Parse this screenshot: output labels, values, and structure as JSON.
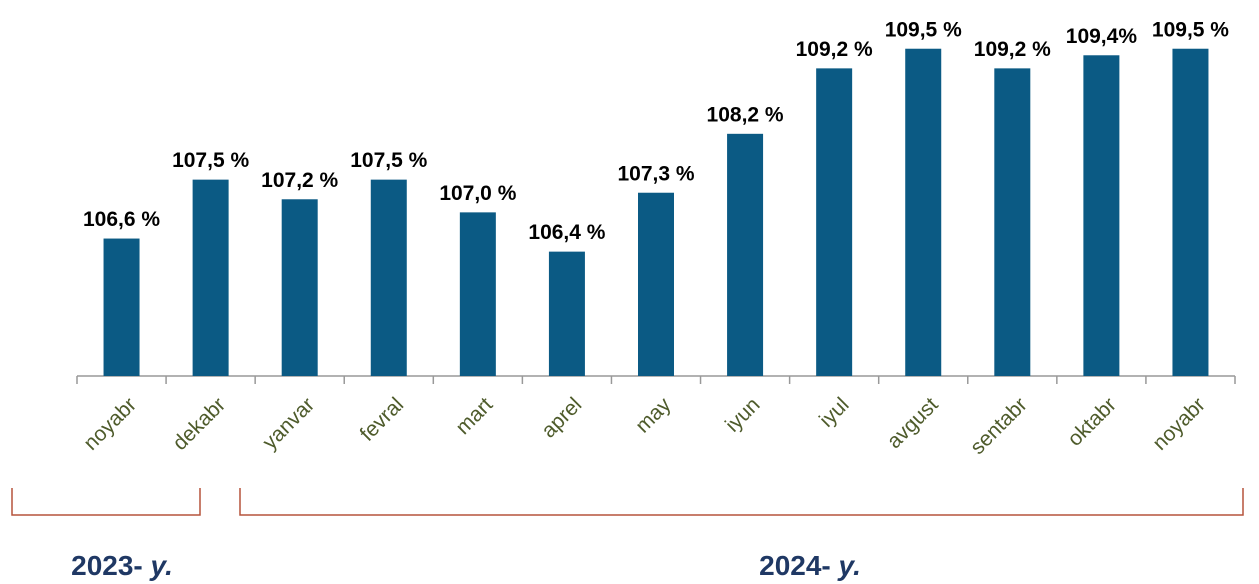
{
  "chart_data": {
    "type": "bar",
    "categories": [
      "noyabr",
      "dekabr",
      "yanvar",
      "fevral",
      "mart",
      "aprel",
      "may",
      "iyun",
      "iyul",
      "avgust",
      "sentabr",
      "oktabr",
      "noyabr"
    ],
    "values": [
      106.6,
      107.5,
      107.2,
      107.5,
      107.0,
      106.4,
      107.3,
      108.2,
      109.2,
      109.5,
      109.2,
      109.4,
      109.5
    ],
    "value_labels": [
      "106,6 %",
      "107,5 %",
      "107,2 %",
      "107,5 %",
      "107,0 %",
      "106,4 %",
      "107,3 %",
      "108,2 %",
      "109,2 %",
      "109,5 %",
      "109,2 %",
      "109,4%",
      "109,5 %"
    ],
    "color": "#0b5a84",
    "ylim": [
      104.5,
      110
    ],
    "groups": [
      {
        "year": "2023-",
        "unit": "y."
      },
      {
        "year": "2024-",
        "unit": "y."
      }
    ]
  }
}
